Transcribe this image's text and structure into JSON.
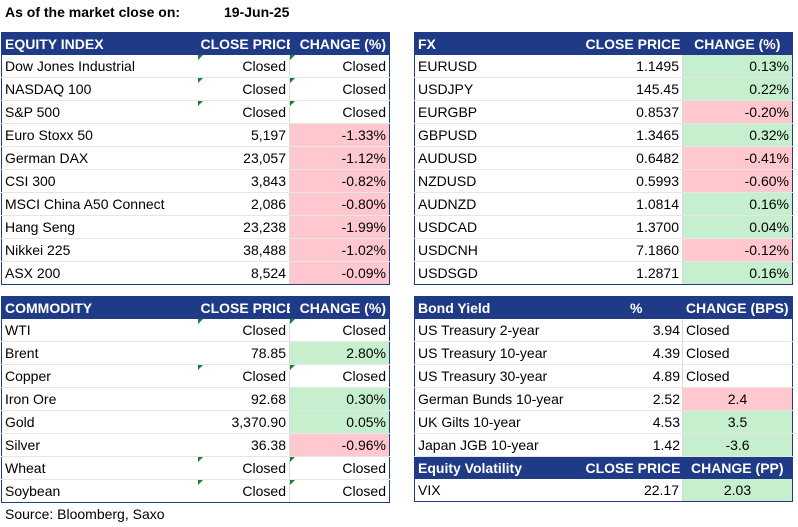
{
  "header": {
    "label": "As of the market close on:",
    "date": "19-Jun-25"
  },
  "equity": {
    "headers": [
      "EQUITY INDEX",
      "CLOSE PRICE",
      "CHANGE (%)"
    ],
    "rows": [
      {
        "name": "Dow Jones Industrial",
        "close": "Closed",
        "change": "Closed",
        "tone": "none"
      },
      {
        "name": "NASDAQ 100",
        "close": "Closed",
        "change": "Closed",
        "tone": "none"
      },
      {
        "name": "S&P 500",
        "close": "Closed",
        "change": "Closed",
        "tone": "none"
      },
      {
        "name": "Euro Stoxx 50",
        "close": "5,197",
        "change": "-1.33%",
        "tone": "neg"
      },
      {
        "name": "German DAX",
        "close": "23,057",
        "change": "-1.12%",
        "tone": "neg"
      },
      {
        "name": "CSI 300",
        "close": "3,843",
        "change": "-0.82%",
        "tone": "neg"
      },
      {
        "name": "MSCI China A50 Connect",
        "close": "2,086",
        "change": "-0.80%",
        "tone": "neg"
      },
      {
        "name": "Hang Seng",
        "close": "23,238",
        "change": "-1.99%",
        "tone": "neg"
      },
      {
        "name": "Nikkei 225",
        "close": "38,488",
        "change": "-1.02%",
        "tone": "neg"
      },
      {
        "name": "ASX 200",
        "close": "8,524",
        "change": "-0.09%",
        "tone": "neg"
      }
    ]
  },
  "fx": {
    "headers": [
      "FX",
      "CLOSE PRICE",
      "CHANGE (%)"
    ],
    "rows": [
      {
        "name": "EURUSD",
        "close": "1.1495",
        "change": "0.13%",
        "tone": "pos"
      },
      {
        "name": "USDJPY",
        "close": "145.45",
        "change": "0.22%",
        "tone": "pos"
      },
      {
        "name": "EURGBP",
        "close": "0.8537",
        "change": "-0.20%",
        "tone": "neg"
      },
      {
        "name": "GBPUSD",
        "close": "1.3465",
        "change": "0.32%",
        "tone": "pos"
      },
      {
        "name": "AUDUSD",
        "close": "0.6482",
        "change": "-0.41%",
        "tone": "neg"
      },
      {
        "name": "NZDUSD",
        "close": "0.5993",
        "change": "-0.60%",
        "tone": "neg"
      },
      {
        "name": "AUDNZD",
        "close": "1.0814",
        "change": "0.16%",
        "tone": "pos"
      },
      {
        "name": "USDCAD",
        "close": "1.3700",
        "change": "0.04%",
        "tone": "pos"
      },
      {
        "name": "USDCNH",
        "close": "7.1860",
        "change": "-0.12%",
        "tone": "neg"
      },
      {
        "name": "USDSGD",
        "close": "1.2871",
        "change": "0.16%",
        "tone": "pos"
      }
    ]
  },
  "commodity": {
    "headers": [
      "COMMODITY",
      "CLOSE PRICE",
      "CHANGE (%)"
    ],
    "rows": [
      {
        "name": "WTI",
        "close": "Closed",
        "change": "Closed",
        "tone": "none"
      },
      {
        "name": "Brent",
        "close": "78.85",
        "change": "2.80%",
        "tone": "pos"
      },
      {
        "name": "Copper",
        "close": "Closed",
        "change": "Closed",
        "tone": "none"
      },
      {
        "name": "Iron Ore",
        "close": "92.68",
        "change": "0.30%",
        "tone": "pos"
      },
      {
        "name": "Gold",
        "close": "3,370.90",
        "change": "0.05%",
        "tone": "pos"
      },
      {
        "name": "Silver",
        "close": "36.38",
        "change": "-0.96%",
        "tone": "neg"
      },
      {
        "name": "Wheat",
        "close": "Closed",
        "change": "Closed",
        "tone": "none"
      },
      {
        "name": "Soybean",
        "close": "Closed",
        "change": "Closed",
        "tone": "none"
      }
    ]
  },
  "bond": {
    "headers": [
      "Bond Yield",
      "%",
      "CHANGE (BPS)"
    ],
    "rows": [
      {
        "name": "US Treasury 2-year",
        "value": "3.94",
        "change": "Closed",
        "tone": "closed"
      },
      {
        "name": "US Treasury 10-year",
        "value": "4.39",
        "change": "Closed",
        "tone": "closed"
      },
      {
        "name": "US Treasury 30-year",
        "value": "4.89",
        "change": "Closed",
        "tone": "closed"
      },
      {
        "name": "German Bunds 10-year",
        "value": "2.52",
        "change": "2.4",
        "tone": "neg"
      },
      {
        "name": "UK Gilts 10-year",
        "value": "4.53",
        "change": "3.5",
        "tone": "pos"
      },
      {
        "name": "Japan JGB 10-year",
        "value": "1.42",
        "change": "-3.6",
        "tone": "pos"
      }
    ]
  },
  "volatility": {
    "headers": [
      "Equity Volatility",
      "CLOSE PRICE",
      "CHANGE (PP)"
    ],
    "rows": [
      {
        "name": "VIX",
        "close": "22.17",
        "change": "2.03",
        "tone": "pos"
      }
    ]
  },
  "footer": {
    "source": "Source: Bloomberg, Saxo"
  },
  "colors": {
    "header_bg": "#1f3a86",
    "positive": "#c6efce",
    "negative": "#ffc7ce",
    "marker": "#1a7f2e"
  }
}
